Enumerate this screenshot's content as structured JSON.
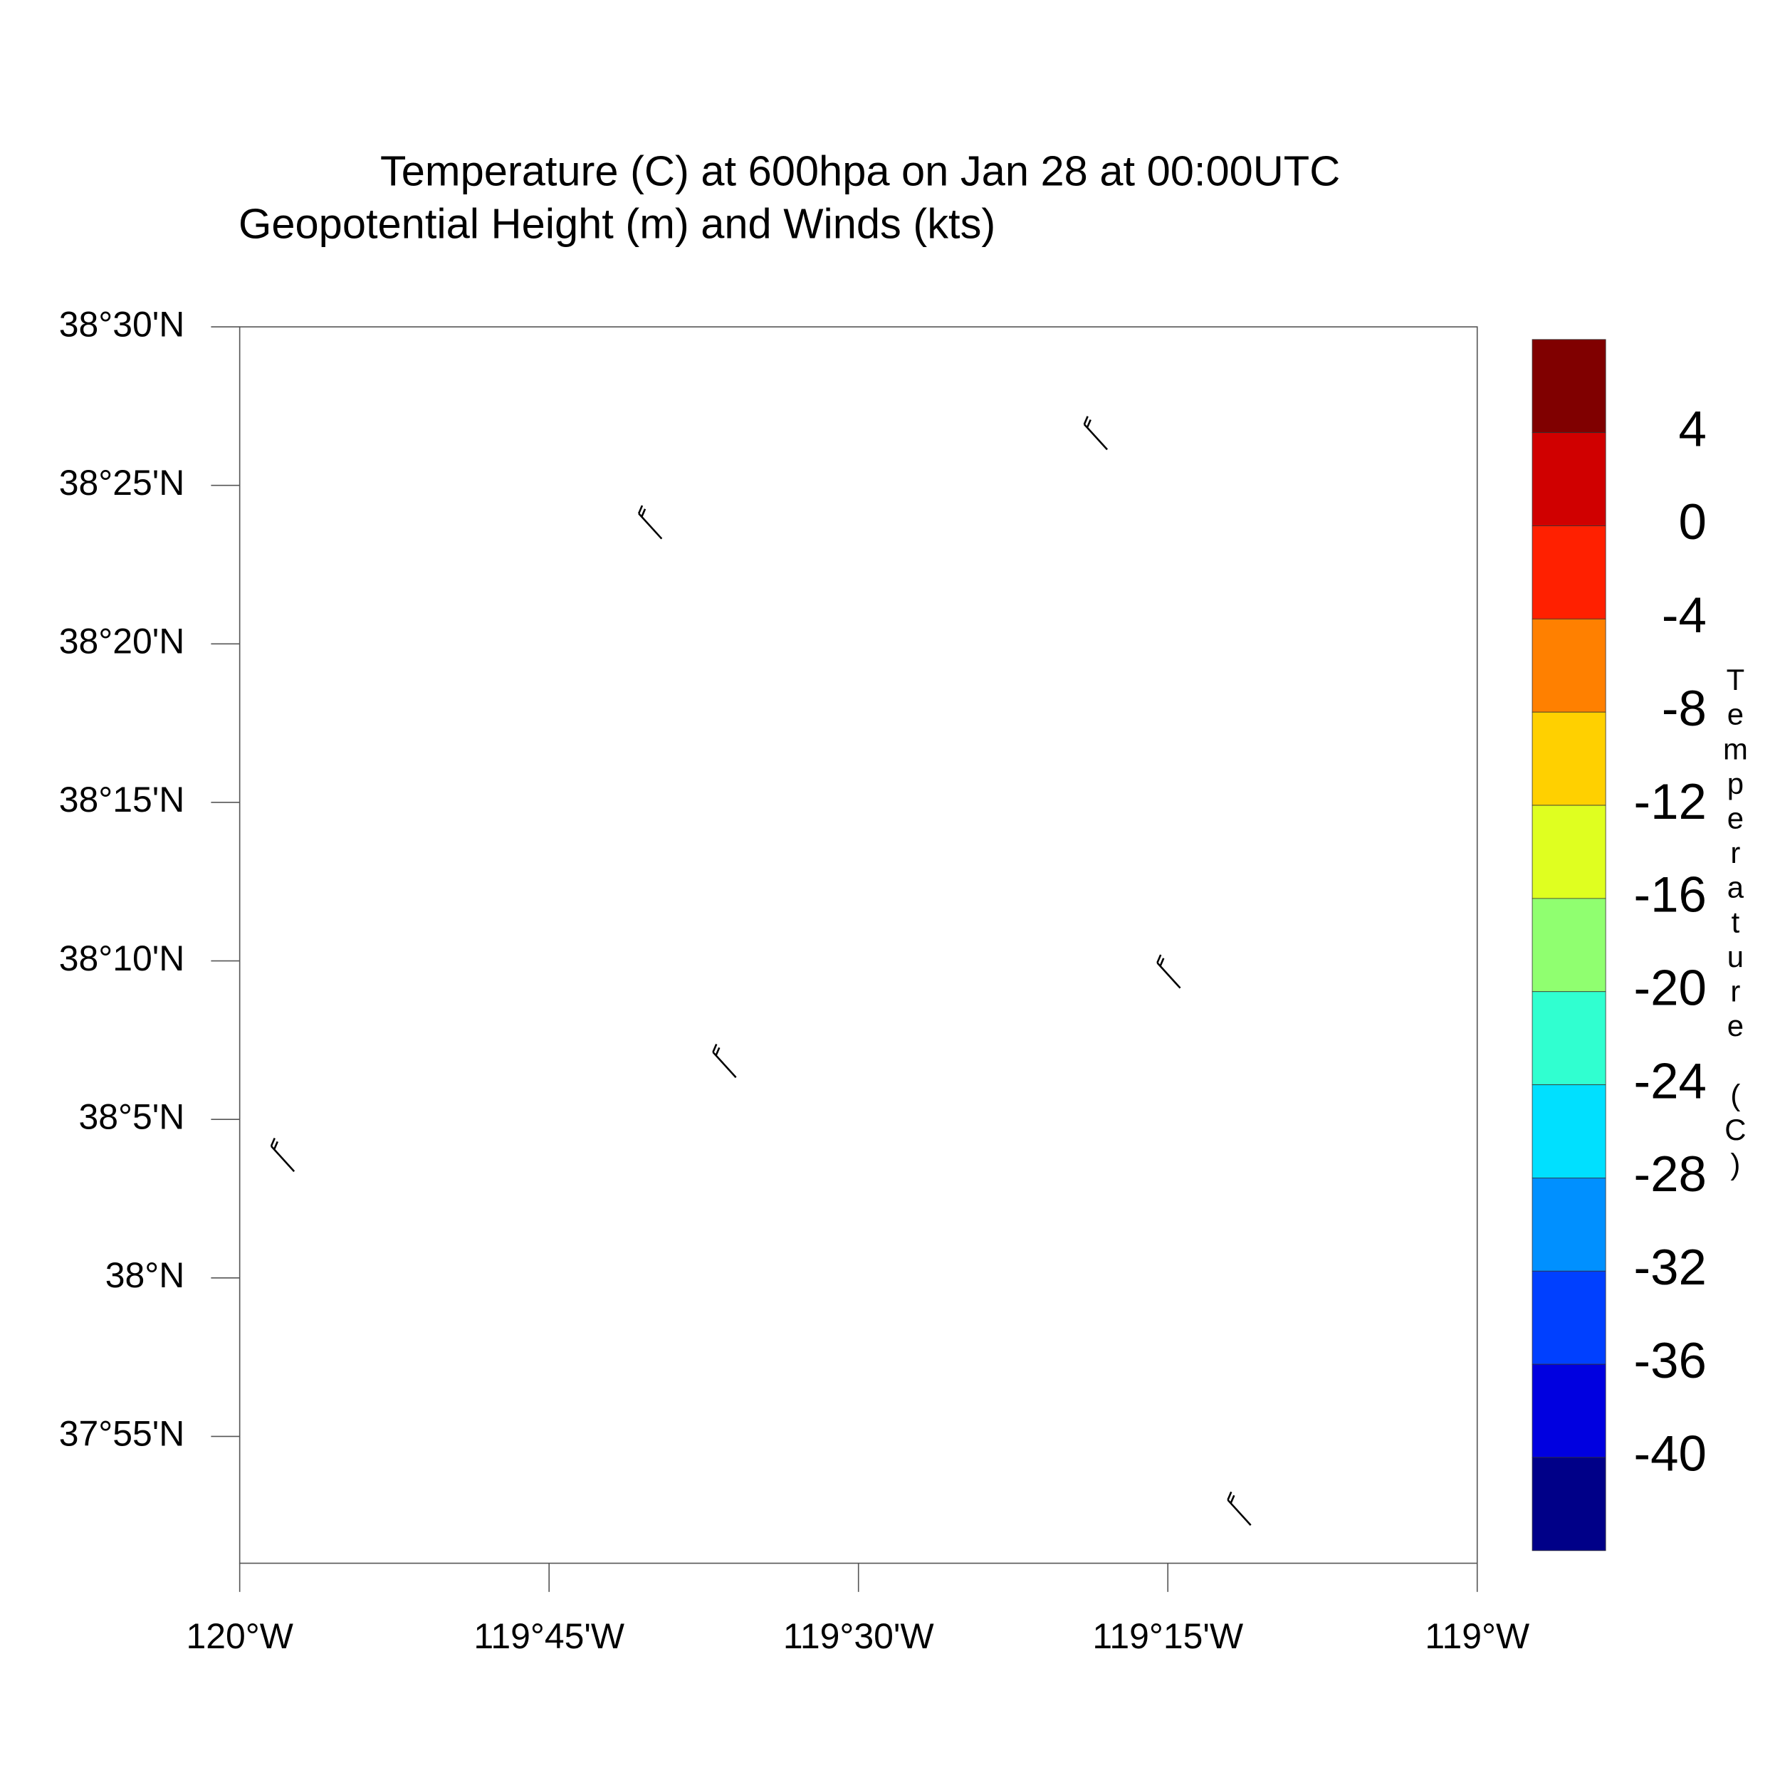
{
  "chart_data": {
    "type": "map",
    "title": "Temperature (C) at 600hpa on Jan 28 at 00:00UTC",
    "subtitle": "Geopotential Height (m) and Winds (kts)",
    "xlim": [
      -120,
      -119
    ],
    "xticks": [
      {
        "value": -120,
        "label": "120°W"
      },
      {
        "value": -119.75,
        "label": "119°45'W"
      },
      {
        "value": -119.5,
        "label": "119°30'W"
      },
      {
        "value": -119.25,
        "label": "119°15'W"
      },
      {
        "value": -119,
        "label": "119°W"
      }
    ],
    "ylim": [
      37.85,
      38.5
    ],
    "yticks": [
      {
        "value": 37.916667,
        "label": "37°55'N"
      },
      {
        "value": 38,
        "label": "38°N"
      },
      {
        "value": 38.083333,
        "label": "38°5'N"
      },
      {
        "value": 38.166667,
        "label": "38°10'N"
      },
      {
        "value": 38.25,
        "label": "38°15'N"
      },
      {
        "value": 38.333333,
        "label": "38°20'N"
      },
      {
        "value": 38.416667,
        "label": "38°25'N"
      },
      {
        "value": 38.5,
        "label": "38°30'N"
      }
    ],
    "wind_barbs": {
      "x": [
        -119.299,
        -119.659,
        -119.24,
        -119.599,
        -119.956,
        -119.183
      ],
      "y": [
        38.4355,
        38.3886,
        38.1524,
        38.1054,
        38.056,
        37.87
      ],
      "color": "#000000"
    },
    "colorbar": {
      "label": "Temperature (C)",
      "levels": [
        4,
        0,
        -4,
        -8,
        -12,
        -16,
        -20,
        -24,
        -28,
        -32,
        -36,
        -40
      ],
      "colors": [
        "#800000",
        "#d00000",
        "#ff2000",
        "#ff8000",
        "#ffd000",
        "#dfff20",
        "#90ff70",
        "#30ffd0",
        "#00e0ff",
        "#0090ff",
        "#0040ff",
        "#0000e0",
        "#000088"
      ]
    }
  }
}
